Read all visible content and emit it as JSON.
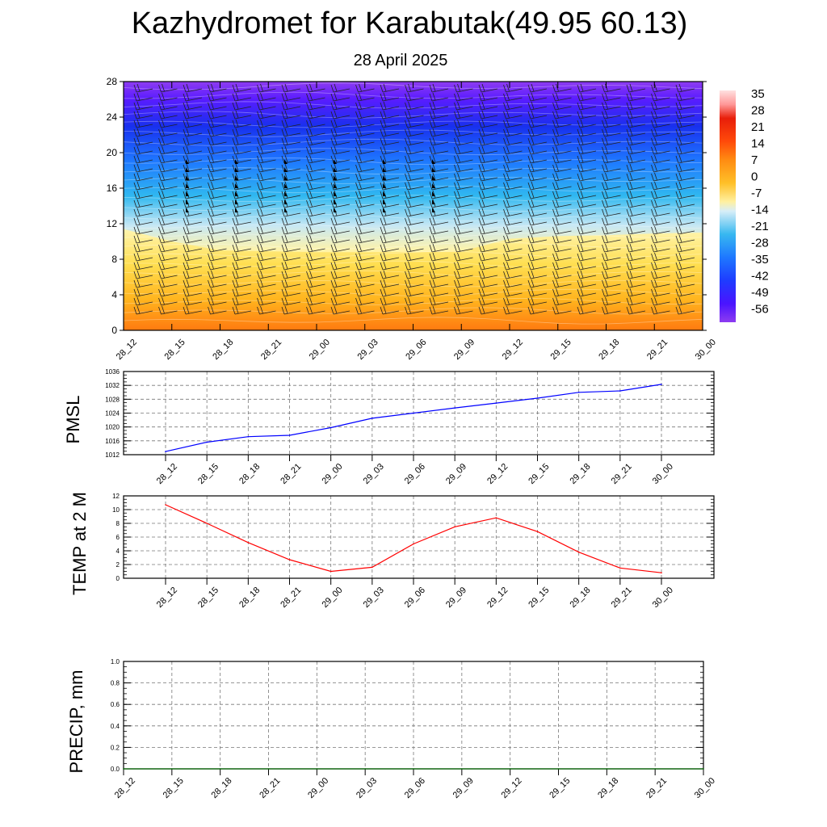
{
  "title": "Kazhydromet for Karabutak(49.95 60.13)",
  "subtitle": "28 April 2025",
  "colors": {
    "pmsl_line": "#0000ff",
    "temp_line": "#ff0000",
    "precip_line": "#006400",
    "colorbar": [
      "#8a2be2",
      "#3a10ff",
      "#1e50ff",
      "#1ea0ff",
      "#a8ddf0",
      "#fff6a0",
      "#ffd23c",
      "#ffaa14",
      "#ff6e0a",
      "#e81e0a",
      "#ff9898",
      "#ffe0e0"
    ]
  },
  "chart_data": [
    {
      "type": "heatmap",
      "name": "cross-section",
      "x_tick_labels": [
        "28_12",
        "28_15",
        "28_18",
        "28_21",
        "29_00",
        "29_03",
        "29_06",
        "29_09",
        "29_12",
        "29_15",
        "29_18",
        "29_21",
        "30_00"
      ],
      "y_tick_labels": [
        "0",
        "4",
        "8",
        "12",
        "16",
        "20",
        "24",
        "28"
      ],
      "ylim": [
        0,
        28
      ],
      "colorbar_labels": [
        "35",
        "28",
        "21",
        "14",
        "7",
        "0",
        "-7",
        "-14",
        "-21",
        "-28",
        "-35",
        "-42",
        "-49",
        "-56"
      ],
      "freezing_level": {
        "x": [
          "28_12",
          "28_15",
          "28_18",
          "28_21",
          "29_00",
          "29_03",
          "29_06",
          "29_09",
          "29_12",
          "29_15",
          "29_18",
          "29_21",
          "30_00"
        ],
        "y": [
          11.4,
          10.0,
          9.0,
          8.9,
          8.8,
          8.8,
          8.8,
          8.9,
          10.3,
          10.6,
          10.7,
          10.9,
          11.0
        ]
      }
    },
    {
      "type": "line",
      "ylabel": "PMSL",
      "x_tick_labels": [
        "28_12",
        "28_15",
        "28_18",
        "28_21",
        "29_00",
        "29_03",
        "29_06",
        "29_09",
        "29_12",
        "29_15",
        "29_18",
        "29_21",
        "30_00"
      ],
      "y_tick_labels": [
        "1012",
        "1016",
        "1020",
        "1024",
        "1028",
        "1032",
        "1036"
      ],
      "ylim": [
        1012,
        1036
      ],
      "series": [
        {
          "values": [
            1012.9,
            1015.6,
            1017.2,
            1017.6,
            1019.8,
            1022.5,
            1024.0,
            1025.5,
            1026.9,
            1028.3,
            1030.0,
            1030.4,
            1032.3
          ]
        }
      ],
      "grid": true
    },
    {
      "type": "line",
      "ylabel": "TEMP at 2 M",
      "x_tick_labels": [
        "28_12",
        "28_15",
        "28_18",
        "28_21",
        "29_00",
        "29_03",
        "29_06",
        "29_09",
        "29_12",
        "29_15",
        "29_18",
        "29_21",
        "30_00"
      ],
      "y_tick_labels": [
        "0",
        "2",
        "4",
        "6",
        "8",
        "10",
        "12"
      ],
      "ylim": [
        0,
        12
      ],
      "series": [
        {
          "values": [
            10.7,
            8.0,
            5.2,
            2.7,
            1.0,
            1.6,
            5.0,
            7.5,
            8.8,
            6.8,
            3.8,
            1.5,
            0.8
          ]
        }
      ],
      "grid": true
    },
    {
      "type": "line",
      "ylabel": "PRECIP, mm",
      "x_tick_labels": [
        "28_12",
        "28_15",
        "28_18",
        "28_21",
        "29_00",
        "29_03",
        "29_06",
        "29_09",
        "29_12",
        "29_15",
        "29_18",
        "29_21",
        "30_00"
      ],
      "y_tick_labels": [
        "0.0",
        "0.2",
        "0.4",
        "0.6",
        "0.8",
        "1.0"
      ],
      "ylim": [
        0,
        1
      ],
      "series": [
        {
          "values": [
            0,
            0,
            0,
            0,
            0,
            0,
            0,
            0,
            0,
            0,
            0,
            0,
            0
          ]
        }
      ],
      "grid": true
    }
  ]
}
